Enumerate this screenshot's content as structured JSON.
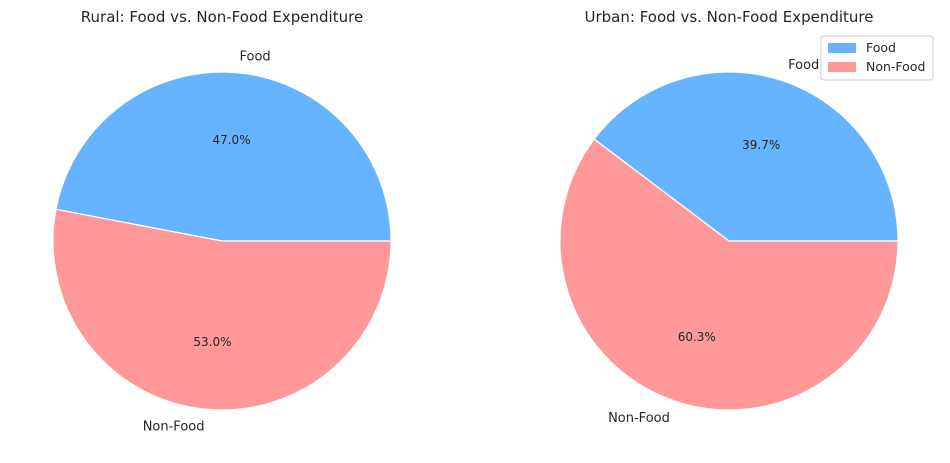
{
  "chart_data": [
    {
      "type": "pie",
      "title": "Rural: Food vs. Non-Food Expenditure",
      "categories": [
        "Food",
        "Non-Food"
      ],
      "values": [
        47.0,
        53.0
      ],
      "value_labels": [
        "47.0%",
        "53.0%"
      ],
      "colors": [
        "#66b3ff",
        "#ff9999"
      ],
      "start_angle_deg": 0,
      "legend": null
    },
    {
      "type": "pie",
      "title": "Urban: Food vs. Non-Food Expenditure",
      "categories": [
        "Food",
        "Non-Food"
      ],
      "values": [
        39.7,
        60.3
      ],
      "value_labels": [
        "39.7%",
        "60.3%"
      ],
      "colors": [
        "#66b3ff",
        "#ff9999"
      ],
      "start_angle_deg": 0,
      "legend": {
        "placement": "top-right",
        "entries": [
          "Food",
          "Non-Food"
        ]
      }
    }
  ]
}
